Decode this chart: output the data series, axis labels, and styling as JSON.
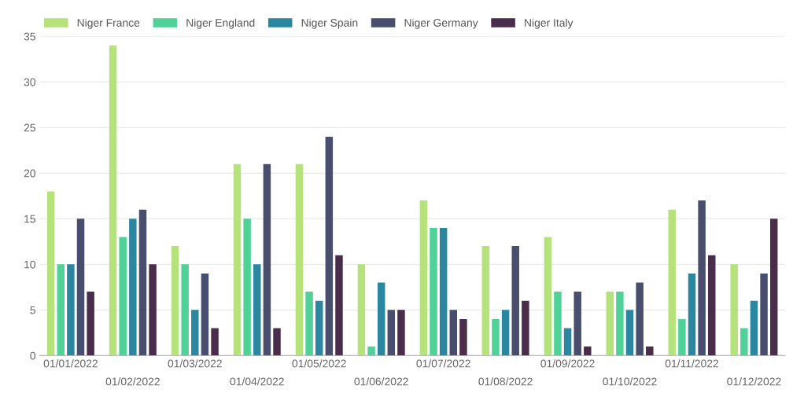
{
  "chart_data": {
    "type": "bar",
    "categories": [
      "01/01/2022",
      "01/02/2022",
      "01/03/2022",
      "01/04/2022",
      "01/05/2022",
      "01/06/2022",
      "01/07/2022",
      "01/08/2022",
      "01/09/2022",
      "01/10/2022",
      "01/11/2022",
      "01/12/2022"
    ],
    "series": [
      {
        "name": "Niger France",
        "color": "#b5e27a",
        "values": [
          18,
          34,
          12,
          21,
          21,
          10,
          17,
          12,
          13,
          7,
          16,
          10
        ]
      },
      {
        "name": "Niger England",
        "color": "#4fd198",
        "values": [
          10,
          13,
          10,
          15,
          7,
          1,
          14,
          4,
          7,
          7,
          4,
          3
        ]
      },
      {
        "name": "Niger Spain",
        "color": "#2b87a0",
        "values": [
          10,
          15,
          5,
          10,
          6,
          8,
          14,
          5,
          3,
          5,
          9,
          6
        ]
      },
      {
        "name": "Niger Germany",
        "color": "#4a4e6e",
        "values": [
          15,
          16,
          9,
          21,
          24,
          5,
          5,
          12,
          7,
          8,
          17,
          9
        ]
      },
      {
        "name": "Niger Italy",
        "color": "#4a2d4a",
        "values": [
          7,
          10,
          3,
          3,
          11,
          5,
          4,
          6,
          1,
          1,
          11,
          15
        ]
      }
    ],
    "ylim": [
      0,
      35
    ],
    "yticks": [
      0,
      5,
      10,
      15,
      20,
      25,
      30,
      35
    ],
    "grid": "y",
    "legend": "top left"
  }
}
